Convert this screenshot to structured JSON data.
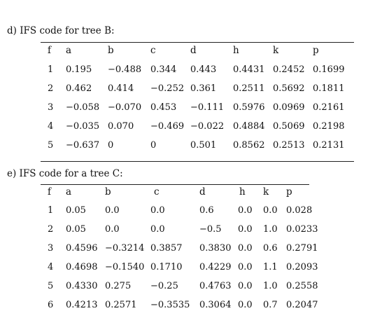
{
  "tables": [
    {
      "caption": "d) IFS code for tree B:",
      "headers": [
        "f",
        "a",
        "b",
        "c",
        "d",
        "h",
        "k",
        "p"
      ],
      "rows": [
        [
          "1",
          "0.195",
          "−0.488",
          "0.344",
          "0.443",
          "0.4431",
          "0.2452",
          "0.1699"
        ],
        [
          "2",
          "0.462",
          "0.414",
          "−0.252",
          "0.361",
          "0.2511",
          "0.5692",
          "0.1811"
        ],
        [
          "3",
          "−0.058",
          "−0.070",
          "0.453",
          "−0.111",
          "0.5976",
          "0.0969",
          "0.2161"
        ],
        [
          "4",
          "−0.035",
          "0.070",
          "−0.469",
          "−0.022",
          "0.4884",
          "0.5069",
          "0.2198"
        ],
        [
          "5",
          "−0.637",
          "0",
          "0",
          "0.501",
          "0.8562",
          "0.2513",
          "0.2131"
        ]
      ]
    },
    {
      "caption": "e) IFS code for a tree C:",
      "headers": [
        "f",
        "a",
        "b",
        "c",
        "d",
        "h",
        "k",
        "p"
      ],
      "rows": [
        [
          "1",
          "0.05",
          "0.0",
          "0.0",
          "0.6",
          "0.0",
          "0.0",
          "0.028"
        ],
        [
          "2",
          "0.05",
          "0.0",
          "0.0",
          "−0.5",
          "0.0",
          "1.0",
          "0.0233"
        ],
        [
          "3",
          "0.4596",
          "−0.3214",
          "0.3857",
          "0.3830",
          "0.0",
          "0.6",
          "0.2791"
        ],
        [
          "4",
          "0.4698",
          "−0.1540",
          "0.1710",
          "0.4229",
          "0.0",
          "1.1",
          "0.2093"
        ],
        [
          "5",
          "0.4330",
          "0.275",
          "−0.25",
          "0.4763",
          "0.0",
          "1.0",
          "0.2558"
        ],
        [
          "6",
          "0.4213",
          "0.2571",
          "−0.3535",
          "0.3064",
          "0.0",
          "0.7",
          "0.2047"
        ]
      ]
    }
  ]
}
